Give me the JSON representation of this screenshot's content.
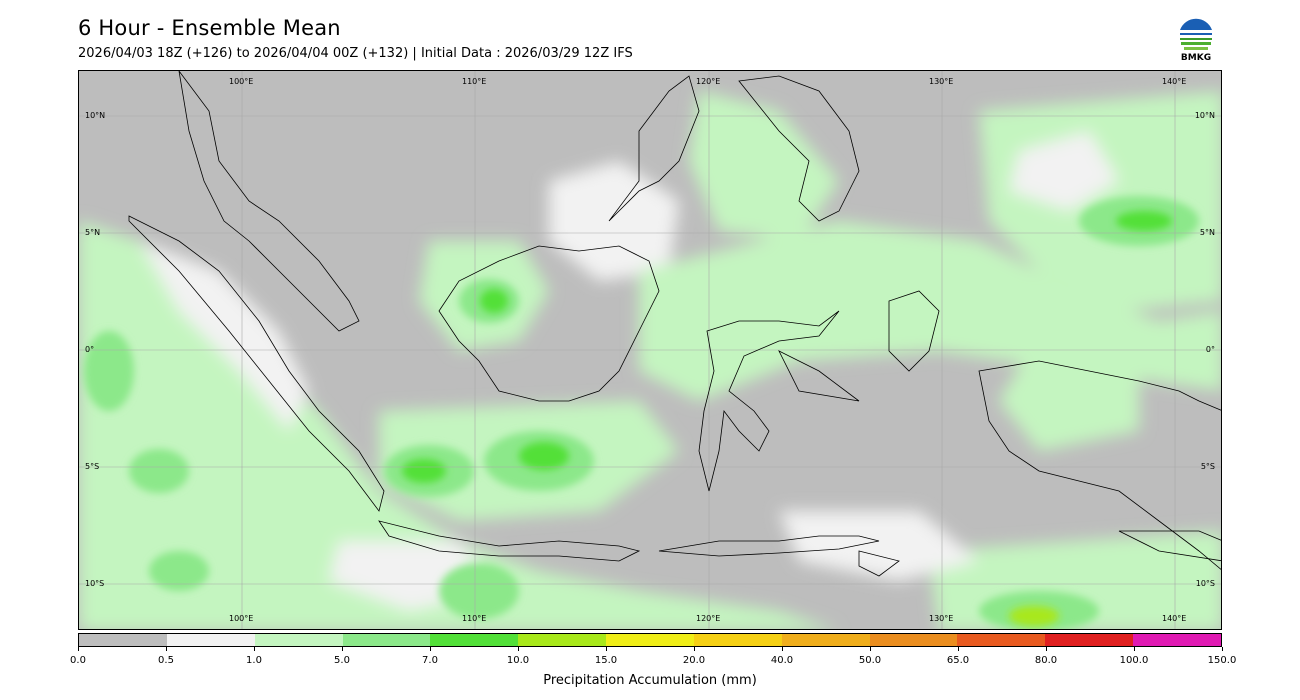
{
  "header": {
    "title": "6 Hour - Ensemble Mean",
    "subtitle": "2026/04/03 18Z (+126) to 2026/04/04 00Z (+132) | Initial Data : 2026/03/29 12Z IFS"
  },
  "logo": {
    "text": "BMKG"
  },
  "map": {
    "lon_top": [
      "100°E",
      "110°E",
      "120°E",
      "130°E",
      "140°E"
    ],
    "lon_bottom": [
      "100°E",
      "110°E",
      "120°E",
      "130°E",
      "140°E"
    ],
    "lat_left": [
      "10°N",
      "5°N",
      "0°",
      "5°S",
      "10°S"
    ],
    "lat_right": [
      "10°N",
      "5°N",
      "0°",
      "5°S",
      "10°S"
    ]
  },
  "colorbar": {
    "colors": [
      "#bdbdbd",
      "#f2f2f2",
      "#c4f5c0",
      "#8ce88a",
      "#52e038",
      "#a8e81a",
      "#f0ee18",
      "#f5d015",
      "#f0ae1c",
      "#eb8e1f",
      "#e85a1f",
      "#e02020",
      "#e01ab3"
    ],
    "ticks": [
      "0.0",
      "0.5",
      "1.0",
      "5.0",
      "7.0",
      "10.0",
      "15.0",
      "20.0",
      "40.0",
      "50.0",
      "65.0",
      "80.0",
      "100.0",
      "150.0"
    ],
    "label": "Precipitation Accumulation (mm)"
  }
}
